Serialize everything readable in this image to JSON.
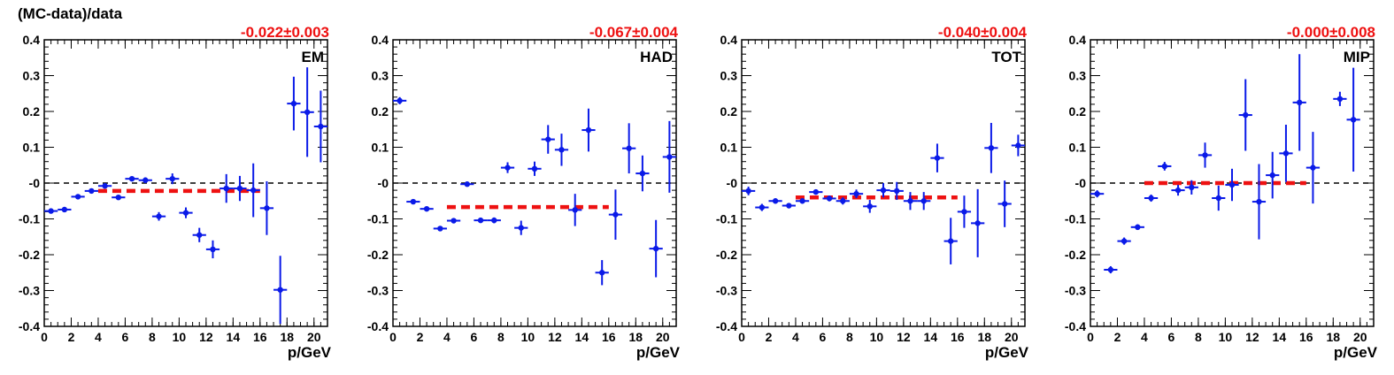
{
  "figure": {
    "ylabel": "(MC-data)/data"
  },
  "chart_data": [
    {
      "type": "scatter",
      "title": "EM",
      "fit_text": "-0.022±0.003",
      "fit": {
        "x_start": 4,
        "x_end": 16,
        "value": -0.022
      },
      "xlabel": "p/GeV",
      "ylabel": "(MC-data)/data",
      "xlim": [
        0,
        21
      ],
      "ylim": [
        -0.4,
        0.4
      ],
      "xticks": [
        "0",
        "2",
        "4",
        "6",
        "8",
        "10",
        "12",
        "14",
        "16",
        "18",
        "20"
      ],
      "yticks": [
        "-0.4",
        "-0.3",
        "-0.2",
        "-0.1",
        "-0",
        "0.1",
        "0.2",
        "0.3",
        "0.4"
      ],
      "points": [
        {
          "x": 0.5,
          "y": -0.078,
          "err": 0.005
        },
        {
          "x": 1.5,
          "y": -0.074,
          "err": 0.005
        },
        {
          "x": 2.5,
          "y": -0.038,
          "err": 0.005
        },
        {
          "x": 3.5,
          "y": -0.022,
          "err": 0.005
        },
        {
          "x": 4.5,
          "y": -0.008,
          "err": 0.005
        },
        {
          "x": 5.5,
          "y": -0.04,
          "err": 0.006
        },
        {
          "x": 6.5,
          "y": 0.012,
          "err": 0.006
        },
        {
          "x": 7.5,
          "y": 0.008,
          "err": 0.008
        },
        {
          "x": 8.5,
          "y": -0.093,
          "err": 0.012
        },
        {
          "x": 9.5,
          "y": 0.012,
          "err": 0.015
        },
        {
          "x": 10.5,
          "y": -0.083,
          "err": 0.015
        },
        {
          "x": 11.5,
          "y": -0.145,
          "err": 0.02
        },
        {
          "x": 12.5,
          "y": -0.185,
          "err": 0.025
        },
        {
          "x": 13.5,
          "y": -0.015,
          "err": 0.04
        },
        {
          "x": 14.5,
          "y": -0.015,
          "err": 0.035
        },
        {
          "x": 15.5,
          "y": -0.02,
          "err": 0.075
        },
        {
          "x": 16.5,
          "y": -0.07,
          "err": 0.075
        },
        {
          "x": 17.5,
          "y": -0.298,
          "err": 0.095
        },
        {
          "x": 18.5,
          "y": 0.222,
          "err": 0.075
        },
        {
          "x": 19.5,
          "y": 0.198,
          "err": 0.125
        },
        {
          "x": 20.5,
          "y": 0.158,
          "err": 0.1
        }
      ]
    },
    {
      "type": "scatter",
      "title": "HAD",
      "fit_text": "-0.067±0.004",
      "fit": {
        "x_start": 4,
        "x_end": 16,
        "value": -0.067
      },
      "xlabel": "p/GeV",
      "xlim": [
        0,
        21
      ],
      "ylim": [
        -0.4,
        0.4
      ],
      "xticks": [
        "0",
        "2",
        "4",
        "6",
        "8",
        "10",
        "12",
        "14",
        "16",
        "18",
        "20"
      ],
      "yticks": [
        "-0.4",
        "-0.3",
        "-0.2",
        "-0.1",
        "-0",
        "0.1",
        "0.2",
        "0.3",
        "0.4"
      ],
      "points": [
        {
          "x": 0.5,
          "y": 0.23,
          "err": 0.01
        },
        {
          "x": 1.5,
          "y": -0.052,
          "err": 0.006
        },
        {
          "x": 2.5,
          "y": -0.072,
          "err": 0.006
        },
        {
          "x": 3.5,
          "y": -0.127,
          "err": 0.005
        },
        {
          "x": 4.5,
          "y": -0.105,
          "err": 0.006
        },
        {
          "x": 5.5,
          "y": -0.003,
          "err": 0.005
        },
        {
          "x": 6.5,
          "y": -0.104,
          "err": 0.006
        },
        {
          "x": 7.5,
          "y": -0.104,
          "err": 0.008
        },
        {
          "x": 8.5,
          "y": 0.043,
          "err": 0.015
        },
        {
          "x": 9.5,
          "y": -0.125,
          "err": 0.02
        },
        {
          "x": 10.5,
          "y": 0.04,
          "err": 0.02
        },
        {
          "x": 11.5,
          "y": 0.122,
          "err": 0.04
        },
        {
          "x": 12.5,
          "y": 0.093,
          "err": 0.045
        },
        {
          "x": 13.5,
          "y": -0.075,
          "err": 0.045
        },
        {
          "x": 14.5,
          "y": 0.148,
          "err": 0.06
        },
        {
          "x": 15.5,
          "y": -0.25,
          "err": 0.035
        },
        {
          "x": 16.5,
          "y": -0.088,
          "err": 0.07
        },
        {
          "x": 17.5,
          "y": 0.097,
          "err": 0.07
        },
        {
          "x": 18.5,
          "y": 0.027,
          "err": 0.05
        },
        {
          "x": 19.5,
          "y": -0.183,
          "err": 0.08
        },
        {
          "x": 20.5,
          "y": 0.073,
          "err": 0.1
        }
      ]
    },
    {
      "type": "scatter",
      "title": "TOT",
      "fit_text": "-0.040±0.004",
      "fit": {
        "x_start": 4,
        "x_end": 16,
        "value": -0.04
      },
      "xlabel": "p/GeV",
      "xlim": [
        0,
        21
      ],
      "ylim": [
        -0.4,
        0.4
      ],
      "xticks": [
        "0",
        "2",
        "4",
        "6",
        "8",
        "10",
        "12",
        "14",
        "16",
        "18",
        "20"
      ],
      "yticks": [
        "-0.4",
        "-0.3",
        "-0.2",
        "-0.1",
        "-0",
        "0.1",
        "0.2",
        "0.3",
        "0.4"
      ],
      "points": [
        {
          "x": 0.5,
          "y": -0.022,
          "err": 0.012
        },
        {
          "x": 1.5,
          "y": -0.068,
          "err": 0.01
        },
        {
          "x": 2.5,
          "y": -0.05,
          "err": 0.006
        },
        {
          "x": 3.5,
          "y": -0.063,
          "err": 0.006
        },
        {
          "x": 4.5,
          "y": -0.05,
          "err": 0.006
        },
        {
          "x": 5.5,
          "y": -0.025,
          "err": 0.006
        },
        {
          "x": 6.5,
          "y": -0.043,
          "err": 0.008
        },
        {
          "x": 7.5,
          "y": -0.05,
          "err": 0.01
        },
        {
          "x": 8.5,
          "y": -0.03,
          "err": 0.012
        },
        {
          "x": 9.5,
          "y": -0.065,
          "err": 0.018
        },
        {
          "x": 10.5,
          "y": -0.02,
          "err": 0.02
        },
        {
          "x": 11.5,
          "y": -0.022,
          "err": 0.025
        },
        {
          "x": 12.5,
          "y": -0.05,
          "err": 0.025
        },
        {
          "x": 13.5,
          "y": -0.05,
          "err": 0.025
        },
        {
          "x": 14.5,
          "y": 0.07,
          "err": 0.04
        },
        {
          "x": 15.5,
          "y": -0.162,
          "err": 0.065
        },
        {
          "x": 16.5,
          "y": -0.08,
          "err": 0.045
        },
        {
          "x": 17.5,
          "y": -0.112,
          "err": 0.095
        },
        {
          "x": 18.5,
          "y": 0.098,
          "err": 0.07
        },
        {
          "x": 19.5,
          "y": -0.058,
          "err": 0.065
        },
        {
          "x": 20.5,
          "y": 0.105,
          "err": 0.03
        }
      ]
    },
    {
      "type": "scatter",
      "title": "MIP",
      "fit_text": "-0.000±0.008",
      "fit": {
        "x_start": 4,
        "x_end": 16,
        "value": 0.0
      },
      "xlabel": "p/GeV",
      "xlim": [
        0,
        21
      ],
      "ylim": [
        -0.4,
        0.4
      ],
      "xticks": [
        "0",
        "2",
        "4",
        "6",
        "8",
        "10",
        "12",
        "14",
        "16",
        "18",
        "20"
      ],
      "yticks": [
        "-0.4",
        "-0.3",
        "-0.2",
        "-0.1",
        "-0",
        "0.1",
        "0.2",
        "0.3",
        "0.4"
      ],
      "points": [
        {
          "x": 0.5,
          "y": -0.03,
          "err": 0.01
        },
        {
          "x": 1.5,
          "y": -0.242,
          "err": 0.01
        },
        {
          "x": 2.5,
          "y": -0.162,
          "err": 0.01
        },
        {
          "x": 3.5,
          "y": -0.123,
          "err": 0.008
        },
        {
          "x": 4.5,
          "y": -0.042,
          "err": 0.01
        },
        {
          "x": 5.5,
          "y": 0.047,
          "err": 0.012
        },
        {
          "x": 6.5,
          "y": -0.02,
          "err": 0.015
        },
        {
          "x": 7.5,
          "y": -0.012,
          "err": 0.02
        },
        {
          "x": 8.5,
          "y": 0.078,
          "err": 0.035
        },
        {
          "x": 9.5,
          "y": -0.042,
          "err": 0.035
        },
        {
          "x": 10.5,
          "y": -0.005,
          "err": 0.045
        },
        {
          "x": 11.5,
          "y": 0.19,
          "err": 0.1
        },
        {
          "x": 12.5,
          "y": -0.052,
          "err": 0.105
        },
        {
          "x": 13.5,
          "y": 0.022,
          "err": 0.065
        },
        {
          "x": 14.5,
          "y": 0.083,
          "err": 0.08
        },
        {
          "x": 15.5,
          "y": 0.225,
          "err": 0.135
        },
        {
          "x": 16.5,
          "y": 0.043,
          "err": 0.1
        },
        {
          "x": 18.5,
          "y": 0.235,
          "err": 0.02
        },
        {
          "x": 19.5,
          "y": 0.177,
          "err": 0.145
        }
      ]
    }
  ]
}
